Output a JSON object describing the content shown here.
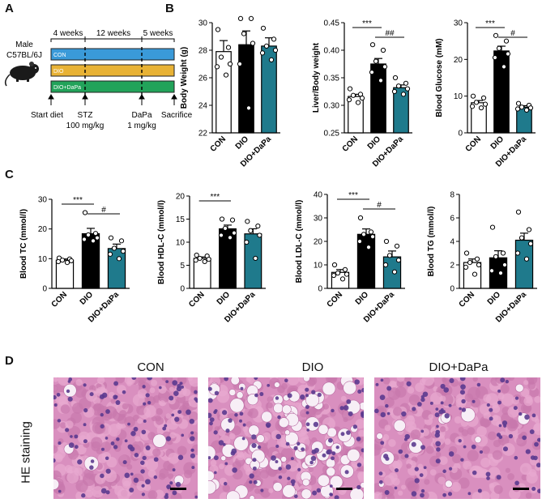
{
  "panels": {
    "a": "A",
    "b": "B",
    "c": "C",
    "d": "D"
  },
  "scheme": {
    "mouse_line1": "Male",
    "mouse_line2": "C57BL/6J",
    "periods": [
      "4 weeks",
      "12 weeks",
      "5 weeks"
    ],
    "bars": [
      {
        "label": "CON",
        "color": "#3a9ad9"
      },
      {
        "label": "DIO",
        "color": "#e8b235"
      },
      {
        "label": "DIO+DaPa",
        "color": "#22a35a"
      }
    ],
    "events": {
      "start": "Start diet",
      "stz": "STZ",
      "stz_dose": "100 mg/kg",
      "dapa": "DaPa",
      "dapa_dose": "1 mg/kg",
      "sacrifice": "Sacrifice"
    }
  },
  "colors": {
    "CON": "#ffffff",
    "DIO": "#000000",
    "DIO+DaPa": "#1f7a8c"
  },
  "chart_data": [
    {
      "type": "bar",
      "id": "bw",
      "categories": [
        "CON",
        "DIO",
        "DIO+DaPa"
      ],
      "ylabel": "Body Weight (g)",
      "ylim": [
        22,
        30
      ],
      "ticks": [
        22,
        24,
        26,
        28,
        30
      ],
      "values": [
        27.9,
        28.4,
        28.3
      ],
      "errors": [
        0.8,
        1.0,
        0.6
      ],
      "points": [
        [
          29.5,
          28.2,
          27.5,
          27.0,
          26.8,
          26.2
        ],
        [
          30.3,
          30.3,
          29.2,
          28.5,
          27.0,
          23.8
        ],
        [
          29.6,
          28.8,
          28.3,
          28.0,
          27.8,
          27.3
        ]
      ],
      "sig": []
    },
    {
      "type": "bar",
      "id": "liver",
      "categories": [
        "CON",
        "DIO",
        "DIO+DaPa"
      ],
      "ylabel": "Liver/Body weight",
      "ylim": [
        0.25,
        0.45
      ],
      "ticks": [
        0.25,
        0.3,
        0.35,
        0.4,
        0.45
      ],
      "values": [
        0.316,
        0.375,
        0.332
      ],
      "errors": [
        0.004,
        0.01,
        0.005
      ],
      "points": [
        [
          0.33,
          0.32,
          0.318,
          0.313,
          0.31,
          0.305
        ],
        [
          0.41,
          0.4,
          0.38,
          0.37,
          0.36,
          0.345
        ],
        [
          0.35,
          0.34,
          0.335,
          0.33,
          0.325,
          0.32
        ]
      ],
      "sig": [
        {
          "from": 0,
          "to": 1,
          "label": "***"
        },
        {
          "from": 1,
          "to": 2,
          "label": "##"
        }
      ]
    },
    {
      "type": "bar",
      "id": "glucose",
      "categories": [
        "CON",
        "DIO",
        "DIO+DaPa"
      ],
      "ylabel": "Blood Glucose (mM)",
      "ylim": [
        0,
        30
      ],
      "ticks": [
        0,
        10,
        20,
        30
      ],
      "values": [
        8.2,
        22.3,
        7.0
      ],
      "errors": [
        0.6,
        1.3,
        0.4
      ],
      "points": [
        [
          10.0,
          9.5,
          8.3,
          7.8,
          7.2,
          6.8
        ],
        [
          26.5,
          25.0,
          23.0,
          21.5,
          20.5,
          18.0
        ],
        [
          8.0,
          7.5,
          7.0,
          6.8,
          6.5,
          6.2
        ]
      ],
      "sig": [
        {
          "from": 0,
          "to": 1,
          "label": "***"
        },
        {
          "from": 1,
          "to": 2,
          "label": "#"
        }
      ]
    },
    {
      "type": "bar",
      "id": "tc",
      "categories": [
        "CON",
        "DIO",
        "DIO+DaPa"
      ],
      "ylabel": "Blood TC (mmol/l)",
      "ylim": [
        0,
        30
      ],
      "ticks": [
        0,
        10,
        20,
        30
      ],
      "values": [
        9.5,
        18.4,
        13.4
      ],
      "errors": [
        0.4,
        1.8,
        1.5
      ],
      "points": [
        [
          10.2,
          9.9,
          9.5,
          9.3,
          9.0,
          8.7
        ],
        [
          25.5,
          18.5,
          18.0,
          17.0,
          16.5,
          16.0
        ],
        [
          17.0,
          16.0,
          13.5,
          12.5,
          11.5,
          10.0
        ]
      ],
      "sig": [
        {
          "from": 0,
          "to": 1,
          "label": "***"
        },
        {
          "from": 1,
          "to": 2,
          "label": "#"
        }
      ]
    },
    {
      "type": "bar",
      "id": "hdl",
      "categories": [
        "CON",
        "DIO",
        "DIO+DaPa"
      ],
      "ylabel": "Blood HDL-C (mmol/l)",
      "ylim": [
        0,
        20
      ],
      "ticks": [
        0,
        5,
        10,
        15,
        20
      ],
      "values": [
        6.5,
        12.9,
        11.8
      ],
      "errors": [
        0.3,
        0.8,
        1.1
      ],
      "points": [
        [
          7.2,
          7.0,
          6.5,
          6.3,
          6.1,
          5.8
        ],
        [
          15.0,
          14.8,
          13.0,
          12.0,
          11.5,
          11.0
        ],
        [
          14.5,
          13.5,
          12.5,
          11.5,
          10.0,
          6.5
        ]
      ],
      "sig": [
        {
          "from": 0,
          "to": 1,
          "label": "***"
        }
      ]
    },
    {
      "type": "bar",
      "id": "ldl",
      "categories": [
        "CON",
        "DIO",
        "DIO+DaPa"
      ],
      "ylabel": "Blood LDL-C (mmol/l)",
      "ylim": [
        0,
        40
      ],
      "ticks": [
        0,
        10,
        20,
        30,
        40
      ],
      "values": [
        6.8,
        23.0,
        13.4
      ],
      "errors": [
        1.2,
        2.3,
        2.5
      ],
      "points": [
        [
          10.0,
          8.0,
          6.5,
          6.0,
          5.5,
          4.0
        ],
        [
          30.0,
          24.0,
          23.0,
          22.0,
          20.0,
          17.5
        ],
        [
          20.0,
          18.0,
          14.0,
          12.0,
          10.0,
          7.0
        ]
      ],
      "sig": [
        {
          "from": 0,
          "to": 1,
          "label": "***"
        },
        {
          "from": 1,
          "to": 2,
          "label": "#"
        }
      ]
    },
    {
      "type": "bar",
      "id": "tg",
      "categories": [
        "CON",
        "DIO",
        "DIO+DaPa"
      ],
      "ylabel": "Blood TG (mmol/l)",
      "ylim": [
        0,
        8
      ],
      "ticks": [
        0,
        2,
        4,
        6,
        8
      ],
      "values": [
        2.2,
        2.6,
        4.1
      ],
      "errors": [
        0.3,
        0.6,
        0.6
      ],
      "points": [
        [
          3.0,
          2.5,
          2.2,
          2.0,
          1.8,
          1.2
        ],
        [
          5.2,
          3.0,
          2.7,
          2.0,
          1.5,
          1.3
        ],
        [
          6.5,
          5.0,
          4.3,
          3.8,
          3.0,
          2.5
        ]
      ],
      "sig": []
    }
  ],
  "histology": {
    "ylabel": "HE staining",
    "titles": [
      "CON",
      "DIO",
      "DIO+DaPa"
    ]
  }
}
